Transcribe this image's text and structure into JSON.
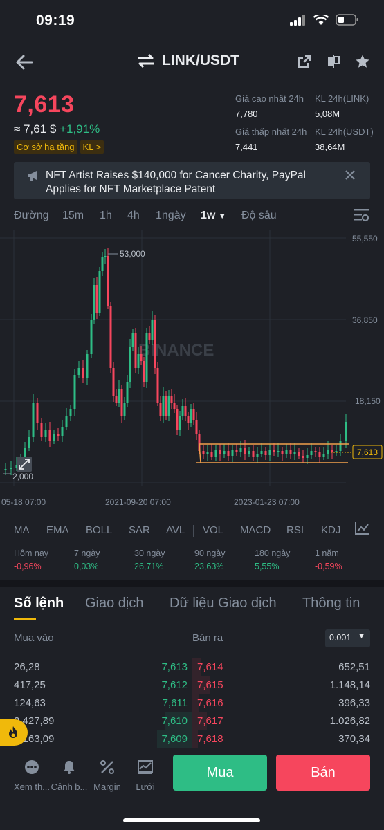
{
  "status": {
    "time": "09:19"
  },
  "header": {
    "pair": "LINK/USDT"
  },
  "price": {
    "last": "7,613",
    "usd": "≈ 7,61 $",
    "change": "+1,91%",
    "tag": "Cơ sở hạ tầng",
    "tag2": "KL >"
  },
  "stats": {
    "high_label": "Giá cao nhất 24h",
    "high": "7,780",
    "vol_link_label": "KL 24h(LINK)",
    "vol_link": "5,08M",
    "low_label": "Giá thấp nhất 24h",
    "low": "7,441",
    "vol_usdt_label": "KL 24h(USDT)",
    "vol_usdt": "38,64M"
  },
  "news": {
    "text": "NFT Artist Raises $140,000 for Cancer Charity, PayPal Applies for NFT Marketplace Patent"
  },
  "timeframes": [
    "Đường",
    "15m",
    "1h",
    "4h",
    "1ngày",
    "1w",
    "Độ sâu"
  ],
  "chart_data": {
    "type": "candlestick",
    "watermark": "BINANCE",
    "y_ticks": [
      "55,550",
      "36,850",
      "18,150"
    ],
    "x_ticks": [
      "05-18 07:00",
      "2021-09-20 07:00",
      "2023-01-23 07:00"
    ],
    "max_label": "53,000",
    "min_label": "2,000",
    "current_label": "7,613"
  },
  "indicators": [
    "MA",
    "EMA",
    "BOLL",
    "SAR",
    "AVL",
    "VOL",
    "MACD",
    "RSI",
    "KDJ"
  ],
  "performance": [
    {
      "label": "Hôm nay",
      "value": "-0,96%",
      "color": "red"
    },
    {
      "label": "7 ngày",
      "value": "0,03%",
      "color": "green"
    },
    {
      "label": "30 ngày",
      "value": "26,71%",
      "color": "green"
    },
    {
      "label": "90 ngày",
      "value": "23,63%",
      "color": "green"
    },
    {
      "label": "180 ngày",
      "value": "5,55%",
      "color": "green"
    },
    {
      "label": "1 năm",
      "value": "-0,59%",
      "color": "red"
    }
  ],
  "main_tabs": [
    "Sổ lệnh",
    "Giao dịch",
    "Dữ liệu Giao dịch",
    "Thông tin"
  ],
  "orderbook": {
    "buy_label": "Mua vào",
    "sell_label": "Bán ra",
    "precision": "0.001",
    "rows": [
      {
        "bid_qty": "26,28",
        "bid": "7,613",
        "ask": "7,614",
        "ask_qty": "652,51"
      },
      {
        "bid_qty": "417,25",
        "bid": "7,612",
        "ask": "7,615",
        "ask_qty": "1.148,14"
      },
      {
        "bid_qty": "124,63",
        "bid": "7,611",
        "ask": "7,616",
        "ask_qty": "396,33"
      },
      {
        "bid_qty": "2.427,89",
        "bid": "7,610",
        "ask": "7,617",
        "ask_qty": "1.026,82"
      },
      {
        "bid_qty": "3.163,09",
        "bid": "7,609",
        "ask": "7,618",
        "ask_qty": "370,34"
      }
    ]
  },
  "bottom_nav": [
    "Xem th...",
    "Cảnh b...",
    "Margin",
    "Lưới"
  ],
  "actions": {
    "buy": "Mua",
    "sell": "Bán"
  }
}
